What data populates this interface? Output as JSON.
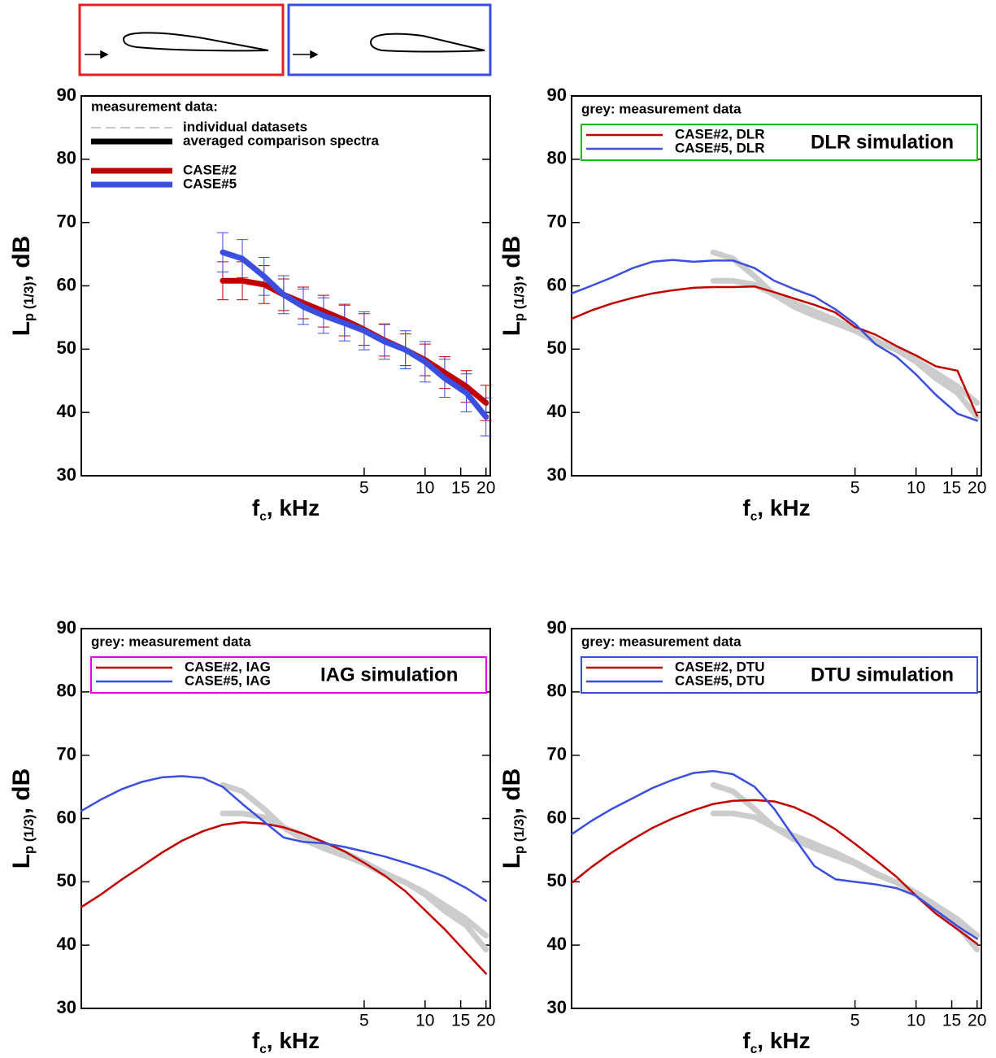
{
  "chart_data": [
    {
      "type": "line",
      "xscale": "log",
      "xlim": [
        0.2,
        21
      ],
      "ylim": [
        30,
        90
      ],
      "xticks": [
        5,
        10,
        15,
        20
      ],
      "yticks": [
        30,
        40,
        50,
        60,
        70,
        80,
        90
      ],
      "xlabel": {
        "main": "f",
        "sub": "c",
        "rest": ", kHz"
      },
      "ylabel": {
        "main": "L",
        "sub": "p (1/3)",
        "rest": ", dB"
      },
      "x": [
        0.2,
        0.25,
        0.315,
        0.4,
        0.5,
        0.63,
        0.8,
        1,
        1.25,
        1.6,
        2,
        2.5,
        3.15,
        4,
        5,
        6.3,
        8,
        10,
        12.5,
        16,
        20
      ],
      "legend": {
        "header": "measurement data:",
        "items": [
          {
            "label": "individual datasets",
            "color": "#c8c8c8",
            "dash": true,
            "width": 2
          },
          {
            "label": "averaged comparison spectra",
            "color": "#000000",
            "dash": false,
            "width": 7
          }
        ]
      },
      "series": [
        {
          "name": "CASE#2",
          "color": "#c00000",
          "width": 7,
          "values": [
            null,
            null,
            null,
            null,
            null,
            null,
            null,
            60.8,
            60.8,
            60.2,
            58.6,
            57.3,
            56.0,
            54.6,
            53.1,
            51.4,
            49.9,
            48.3,
            46.3,
            44.1,
            41.5
          ],
          "errors": [
            null,
            null,
            null,
            null,
            null,
            null,
            null,
            3.0,
            3.0,
            3.0,
            2.5,
            2.5,
            2.5,
            2.5,
            2.5,
            2.5,
            2.5,
            2.5,
            2.5,
            2.5,
            2.8
          ]
        },
        {
          "name": "CASE#5",
          "color": "#3a4fe0",
          "width": 7,
          "values": [
            null,
            null,
            null,
            null,
            null,
            null,
            null,
            65.3,
            64.3,
            61.5,
            58.6,
            56.7,
            55.3,
            54.1,
            52.9,
            51.2,
            49.9,
            48.0,
            45.4,
            43.1,
            39.3
          ],
          "errors": [
            null,
            null,
            null,
            null,
            null,
            null,
            null,
            3.1,
            3.0,
            3.0,
            3.0,
            2.8,
            2.8,
            2.8,
            3.0,
            2.8,
            3.0,
            3.2,
            3.0,
            3.0,
            3.0
          ]
        }
      ]
    },
    {
      "type": "line",
      "xscale": "log",
      "xlim": [
        0.2,
        21
      ],
      "ylim": [
        30,
        90
      ],
      "xticks": [
        5,
        10,
        15,
        20
      ],
      "yticks": [
        30,
        40,
        50,
        60,
        70,
        80,
        90
      ],
      "xlabel": {
        "main": "f",
        "sub": "c",
        "rest": ", kHz"
      },
      "ylabel": {
        "main": "L",
        "sub": "p (1/3)",
        "rest": ", dB"
      },
      "note": "grey: measurement data",
      "x": [
        0.2,
        0.25,
        0.315,
        0.4,
        0.5,
        0.63,
        0.8,
        1,
        1.25,
        1.6,
        2,
        2.5,
        3.15,
        4,
        5,
        6.3,
        8,
        10,
        12.5,
        16,
        20
      ],
      "legend": {
        "title": "DLR simulation",
        "border": "#00c000"
      },
      "series": [
        {
          "color": "#cccccc",
          "width": 7,
          "values": [
            null,
            null,
            null,
            null,
            null,
            null,
            null,
            60.8,
            60.8,
            60.2,
            58.6,
            57.3,
            56.0,
            54.6,
            53.1,
            51.4,
            49.9,
            48.3,
            46.3,
            44.1,
            41.5
          ]
        },
        {
          "color": "#cccccc",
          "width": 7,
          "values": [
            null,
            null,
            null,
            null,
            null,
            null,
            null,
            65.3,
            64.3,
            61.5,
            58.6,
            56.7,
            55.3,
            54.1,
            52.9,
            51.2,
            49.9,
            48.0,
            45.4,
            43.1,
            39.3
          ]
        },
        {
          "name": "CASE#2, DLR",
          "color": "#c00000",
          "width": 2.5,
          "values": [
            54.8,
            56.1,
            57.2,
            58.1,
            58.8,
            59.3,
            59.7,
            59.8,
            59.8,
            59.9,
            59.0,
            58.0,
            57.0,
            55.8,
            53.5,
            52.3,
            50.5,
            49.0,
            47.3,
            46.6,
            39.5
          ]
        },
        {
          "name": "CASE#5, DLR",
          "color": "#3a4fe0",
          "width": 2.5,
          "values": [
            58.8,
            60.0,
            61.3,
            62.8,
            63.8,
            64.1,
            63.8,
            64.0,
            64.0,
            62.8,
            60.8,
            59.5,
            58.3,
            56.3,
            54.0,
            50.8,
            48.8,
            46.0,
            42.8,
            39.8,
            38.7
          ]
        }
      ]
    },
    {
      "type": "line",
      "xscale": "log",
      "xlim": [
        0.2,
        21
      ],
      "ylim": [
        30,
        90
      ],
      "xticks": [
        5,
        10,
        15,
        20
      ],
      "yticks": [
        30,
        40,
        50,
        60,
        70,
        80,
        90
      ],
      "xlabel": {
        "main": "f",
        "sub": "c",
        "rest": ", kHz"
      },
      "ylabel": {
        "main": "L",
        "sub": "p (1/3)",
        "rest": ", dB"
      },
      "note": "grey: measurement data",
      "x": [
        0.2,
        0.25,
        0.315,
        0.4,
        0.5,
        0.63,
        0.8,
        1,
        1.25,
        1.6,
        2,
        2.5,
        3.15,
        4,
        5,
        6.3,
        8,
        10,
        12.5,
        16,
        20
      ],
      "legend": {
        "title": "IAG simulation",
        "border": "#e000e0"
      },
      "series": [
        {
          "color": "#cccccc",
          "width": 7,
          "values": [
            null,
            null,
            null,
            null,
            null,
            null,
            null,
            60.8,
            60.8,
            60.2,
            58.6,
            57.3,
            56.0,
            54.6,
            53.1,
            51.4,
            49.9,
            48.3,
            46.3,
            44.1,
            41.5
          ]
        },
        {
          "color": "#cccccc",
          "width": 7,
          "values": [
            null,
            null,
            null,
            null,
            null,
            null,
            null,
            65.3,
            64.3,
            61.5,
            58.6,
            56.7,
            55.3,
            54.1,
            52.9,
            51.2,
            49.9,
            48.0,
            45.4,
            43.1,
            39.3
          ]
        },
        {
          "name": "CASE#2, IAG",
          "color": "#c00000",
          "width": 2.5,
          "values": [
            46.0,
            48.0,
            50.3,
            52.5,
            54.6,
            56.5,
            58.0,
            59.0,
            59.4,
            59.2,
            58.6,
            57.6,
            56.3,
            54.8,
            53.0,
            51.0,
            48.5,
            45.5,
            42.5,
            38.8,
            35.5
          ]
        },
        {
          "name": "CASE#5, IAG",
          "color": "#3a4fe0",
          "width": 2.5,
          "values": [
            61.2,
            63.0,
            64.6,
            65.8,
            66.5,
            66.7,
            66.4,
            65.0,
            62.3,
            59.5,
            57.0,
            56.3,
            56.1,
            55.5,
            54.8,
            54.0,
            53.0,
            52.0,
            50.8,
            49.0,
            47.0
          ]
        }
      ]
    },
    {
      "type": "line",
      "xscale": "log",
      "xlim": [
        0.2,
        21
      ],
      "ylim": [
        30,
        90
      ],
      "xticks": [
        5,
        10,
        15,
        20
      ],
      "yticks": [
        30,
        40,
        50,
        60,
        70,
        80,
        90
      ],
      "xlabel": {
        "main": "f",
        "sub": "c",
        "rest": ", kHz"
      },
      "ylabel": {
        "main": "L",
        "sub": "p (1/3)",
        "rest": ", dB"
      },
      "note": "grey: measurement data",
      "x": [
        0.2,
        0.25,
        0.315,
        0.4,
        0.5,
        0.63,
        0.8,
        1,
        1.25,
        1.6,
        2,
        2.5,
        3.15,
        4,
        5,
        6.3,
        8,
        10,
        12.5,
        16,
        20
      ],
      "legend": {
        "title": "DTU simulation",
        "border": "#3a4fe0"
      },
      "series": [
        {
          "color": "#cccccc",
          "width": 7,
          "values": [
            null,
            null,
            null,
            null,
            null,
            null,
            null,
            60.8,
            60.8,
            60.2,
            58.6,
            57.3,
            56.0,
            54.6,
            53.1,
            51.4,
            49.9,
            48.3,
            46.3,
            44.1,
            41.5
          ]
        },
        {
          "color": "#cccccc",
          "width": 7,
          "values": [
            null,
            null,
            null,
            null,
            null,
            null,
            null,
            65.3,
            64.3,
            61.5,
            58.6,
            56.7,
            55.3,
            54.1,
            52.9,
            51.2,
            49.9,
            48.0,
            45.4,
            43.1,
            39.3
          ]
        },
        {
          "name": "CASE#2, DTU",
          "color": "#c00000",
          "width": 2.5,
          "values": [
            49.8,
            52.3,
            54.6,
            56.7,
            58.5,
            60.0,
            61.3,
            62.3,
            62.8,
            62.9,
            62.7,
            61.8,
            60.3,
            58.3,
            56.0,
            53.5,
            50.8,
            47.8,
            45.0,
            42.5,
            40.2
          ]
        },
        {
          "name": "CASE#5, DTU",
          "color": "#3a4fe0",
          "width": 2.5,
          "values": [
            57.5,
            59.6,
            61.5,
            63.2,
            64.8,
            66.1,
            67.2,
            67.5,
            67.0,
            65.0,
            61.5,
            57.0,
            52.5,
            50.4,
            50.0,
            49.6,
            49.0,
            47.8,
            45.5,
            43.0,
            41.0
          ]
        }
      ]
    }
  ]
}
